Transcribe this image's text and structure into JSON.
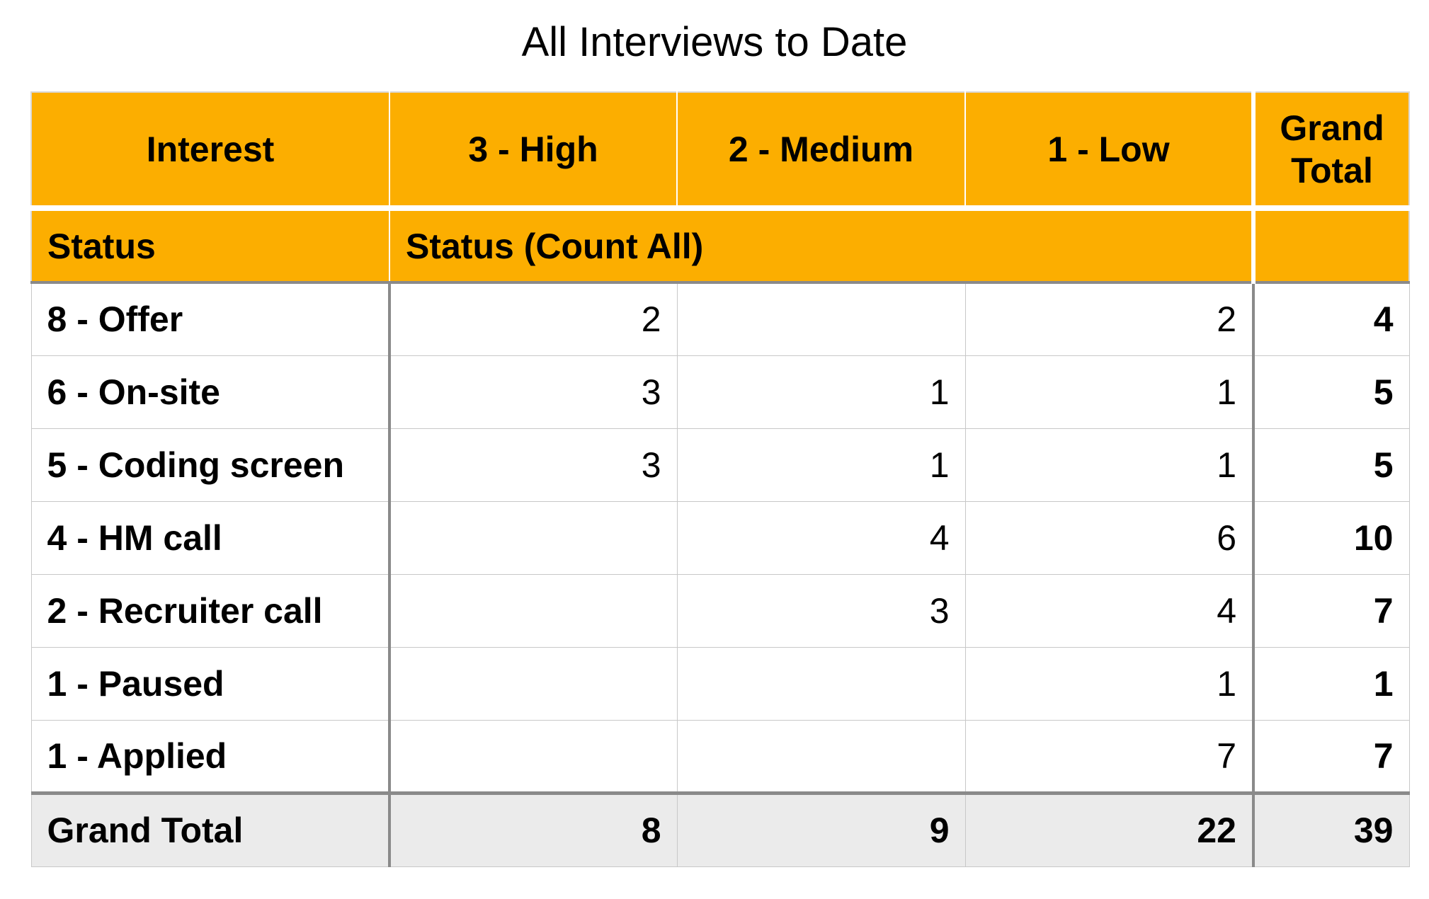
{
  "title": "All Interviews to Date",
  "header": {
    "row_label": "Interest",
    "columns": [
      "3 - High",
      "2 - Medium",
      "1 - Low"
    ],
    "grand_total": "Grand Total",
    "sub_row_label": "Status",
    "sub_columns_label": "Status (Count All)",
    "sub_grand_total": ""
  },
  "rows": [
    {
      "label": "8 - Offer",
      "values": [
        "2",
        "",
        "2"
      ],
      "total": "4"
    },
    {
      "label": "6 - On-site",
      "values": [
        "3",
        "1",
        "1"
      ],
      "total": "5"
    },
    {
      "label": "5 - Coding screen",
      "values": [
        "3",
        "1",
        "1"
      ],
      "total": "5"
    },
    {
      "label": "4 - HM call",
      "values": [
        "",
        "4",
        "6"
      ],
      "total": "10"
    },
    {
      "label": "2 - Recruiter call",
      "values": [
        "",
        "3",
        "4"
      ],
      "total": "7"
    },
    {
      "label": "1 - Paused",
      "values": [
        "",
        "",
        "1"
      ],
      "total": "1"
    },
    {
      "label": "1 - Applied",
      "values": [
        "",
        "",
        "7"
      ],
      "total": "7"
    }
  ],
  "totals": {
    "label": "Grand Total",
    "values": [
      "8",
      "9",
      "22"
    ],
    "total": "39"
  },
  "colors": {
    "header_background": "#fcae00",
    "total_row_background": "#ebebeb"
  }
}
